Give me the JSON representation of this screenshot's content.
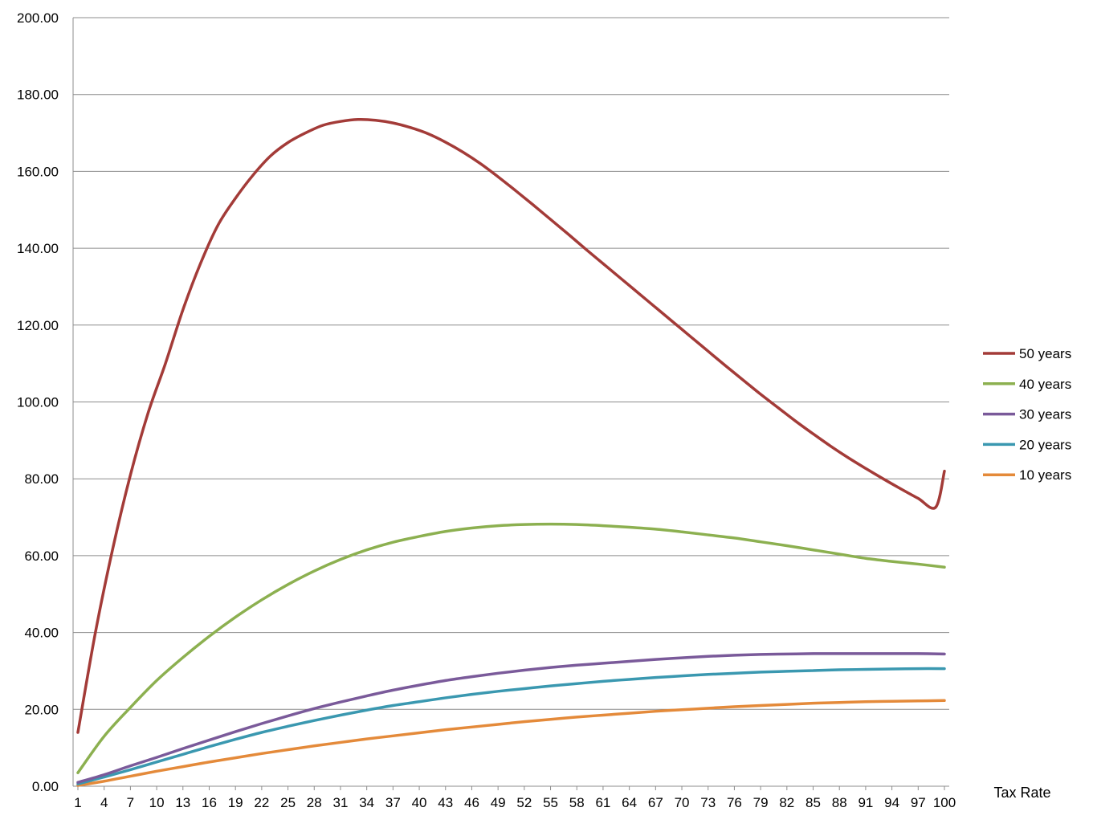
{
  "chart_data": {
    "type": "line",
    "title": "",
    "xlabel": "Tax Rate",
    "ylabel": "",
    "x_tick_labels": [
      "1",
      "4",
      "7",
      "10",
      "13",
      "16",
      "19",
      "22",
      "25",
      "28",
      "31",
      "34",
      "37",
      "40",
      "43",
      "46",
      "49",
      "52",
      "55",
      "58",
      "61",
      "64",
      "67",
      "70",
      "73",
      "76",
      "79",
      "82",
      "85",
      "88",
      "91",
      "94",
      "97",
      "100"
    ],
    "x_range": [
      1,
      100
    ],
    "y_tick_labels": [
      "0.00",
      "20.00",
      "40.00",
      "60.00",
      "80.00",
      "100.00",
      "120.00",
      "140.00",
      "160.00",
      "180.00",
      "200.00"
    ],
    "ylim": [
      0,
      200
    ],
    "grid": "horizontal",
    "legend_position": "right",
    "series": [
      {
        "name": "50 years",
        "color": "#a33b38",
        "points": [
          [
            1,
            14
          ],
          [
            3,
            40
          ],
          [
            5,
            62
          ],
          [
            7,
            81
          ],
          [
            9,
            97
          ],
          [
            11,
            110
          ],
          [
            13,
            124
          ],
          [
            15,
            136
          ],
          [
            17,
            146
          ],
          [
            19,
            153
          ],
          [
            21,
            159
          ],
          [
            23,
            164
          ],
          [
            25,
            167.5
          ],
          [
            27,
            170
          ],
          [
            29,
            172
          ],
          [
            31,
            173
          ],
          [
            33,
            173.5
          ],
          [
            35,
            173.3
          ],
          [
            37,
            172.6
          ],
          [
            39,
            171.4
          ],
          [
            41,
            169.8
          ],
          [
            43,
            167.6
          ],
          [
            45,
            165
          ],
          [
            47,
            162
          ],
          [
            49,
            158.6
          ],
          [
            51,
            155
          ],
          [
            53,
            151.3
          ],
          [
            55,
            147.5
          ],
          [
            57,
            143.7
          ],
          [
            59,
            139.8
          ],
          [
            61,
            136
          ],
          [
            63,
            132.2
          ],
          [
            65,
            128.4
          ],
          [
            67,
            124.6
          ],
          [
            69,
            120.8
          ],
          [
            71,
            117
          ],
          [
            73,
            113.2
          ],
          [
            75,
            109.4
          ],
          [
            77,
            105.7
          ],
          [
            79,
            102
          ],
          [
            81,
            98.5
          ],
          [
            83,
            95
          ],
          [
            85,
            91.7
          ],
          [
            87,
            88.5
          ],
          [
            89,
            85.5
          ],
          [
            91,
            82.7
          ],
          [
            93,
            80
          ],
          [
            95,
            77.4
          ],
          [
            97,
            74.9
          ],
          [
            99,
            72.6
          ],
          [
            100,
            82
          ]
        ]
      },
      {
        "name": "40 years",
        "color": "#8cb050",
        "points": [
          [
            1,
            3.5
          ],
          [
            4,
            13
          ],
          [
            7,
            20.5
          ],
          [
            10,
            27.5
          ],
          [
            13,
            33.5
          ],
          [
            16,
            39
          ],
          [
            19,
            44
          ],
          [
            22,
            48.5
          ],
          [
            25,
            52.5
          ],
          [
            28,
            56
          ],
          [
            31,
            59
          ],
          [
            34,
            61.5
          ],
          [
            37,
            63.5
          ],
          [
            40,
            65
          ],
          [
            43,
            66.3
          ],
          [
            46,
            67.2
          ],
          [
            49,
            67.8
          ],
          [
            52,
            68.1
          ],
          [
            55,
            68.2
          ],
          [
            58,
            68.1
          ],
          [
            61,
            67.8
          ],
          [
            64,
            67.4
          ],
          [
            67,
            66.9
          ],
          [
            70,
            66.2
          ],
          [
            73,
            65.4
          ],
          [
            76,
            64.6
          ],
          [
            79,
            63.6
          ],
          [
            82,
            62.6
          ],
          [
            85,
            61.5
          ],
          [
            88,
            60.4
          ],
          [
            91,
            59.3
          ],
          [
            94,
            58.5
          ],
          [
            97,
            57.8
          ],
          [
            100,
            57
          ]
        ]
      },
      {
        "name": "30 years",
        "color": "#7a5a9a",
        "points": [
          [
            1,
            1
          ],
          [
            4,
            3
          ],
          [
            7,
            5.3
          ],
          [
            10,
            7.5
          ],
          [
            13,
            9.8
          ],
          [
            16,
            12
          ],
          [
            19,
            14.2
          ],
          [
            22,
            16.3
          ],
          [
            25,
            18.3
          ],
          [
            28,
            20.2
          ],
          [
            31,
            21.9
          ],
          [
            34,
            23.5
          ],
          [
            37,
            25
          ],
          [
            40,
            26.3
          ],
          [
            43,
            27.5
          ],
          [
            46,
            28.5
          ],
          [
            49,
            29.4
          ],
          [
            52,
            30.2
          ],
          [
            55,
            30.9
          ],
          [
            58,
            31.5
          ],
          [
            61,
            32
          ],
          [
            64,
            32.5
          ],
          [
            67,
            33
          ],
          [
            70,
            33.4
          ],
          [
            73,
            33.8
          ],
          [
            76,
            34.1
          ],
          [
            79,
            34.3
          ],
          [
            82,
            34.4
          ],
          [
            85,
            34.5
          ],
          [
            88,
            34.5
          ],
          [
            91,
            34.5
          ],
          [
            94,
            34.5
          ],
          [
            97,
            34.5
          ],
          [
            100,
            34.4
          ]
        ]
      },
      {
        "name": "20 years",
        "color": "#3a98b0",
        "points": [
          [
            1,
            0.6
          ],
          [
            4,
            2.4
          ],
          [
            7,
            4.3
          ],
          [
            10,
            6.3
          ],
          [
            13,
            8.3
          ],
          [
            16,
            10.3
          ],
          [
            19,
            12.2
          ],
          [
            22,
            14
          ],
          [
            25,
            15.6
          ],
          [
            28,
            17.1
          ],
          [
            31,
            18.5
          ],
          [
            34,
            19.8
          ],
          [
            37,
            21
          ],
          [
            40,
            22
          ],
          [
            43,
            23
          ],
          [
            46,
            23.9
          ],
          [
            49,
            24.7
          ],
          [
            52,
            25.4
          ],
          [
            55,
            26.1
          ],
          [
            58,
            26.7
          ],
          [
            61,
            27.3
          ],
          [
            64,
            27.8
          ],
          [
            67,
            28.3
          ],
          [
            70,
            28.7
          ],
          [
            73,
            29.1
          ],
          [
            76,
            29.4
          ],
          [
            79,
            29.7
          ],
          [
            82,
            29.9
          ],
          [
            85,
            30.1
          ],
          [
            88,
            30.3
          ],
          [
            91,
            30.4
          ],
          [
            94,
            30.5
          ],
          [
            97,
            30.6
          ],
          [
            100,
            30.6
          ]
        ]
      },
      {
        "name": "10 years",
        "color": "#e48a3a",
        "points": [
          [
            1,
            0.2
          ],
          [
            4,
            1.3
          ],
          [
            7,
            2.6
          ],
          [
            10,
            3.9
          ],
          [
            13,
            5.1
          ],
          [
            16,
            6.3
          ],
          [
            19,
            7.4
          ],
          [
            22,
            8.5
          ],
          [
            25,
            9.5
          ],
          [
            28,
            10.5
          ],
          [
            31,
            11.4
          ],
          [
            34,
            12.3
          ],
          [
            37,
            13.1
          ],
          [
            40,
            13.9
          ],
          [
            43,
            14.7
          ],
          [
            46,
            15.4
          ],
          [
            49,
            16.1
          ],
          [
            52,
            16.8
          ],
          [
            55,
            17.4
          ],
          [
            58,
            18
          ],
          [
            61,
            18.5
          ],
          [
            64,
            19
          ],
          [
            67,
            19.5
          ],
          [
            70,
            19.9
          ],
          [
            73,
            20.3
          ],
          [
            76,
            20.7
          ],
          [
            79,
            21
          ],
          [
            82,
            21.3
          ],
          [
            85,
            21.6
          ],
          [
            88,
            21.8
          ],
          [
            91,
            22
          ],
          [
            94,
            22.1
          ],
          [
            97,
            22.2
          ],
          [
            100,
            22.3
          ]
        ]
      }
    ]
  }
}
